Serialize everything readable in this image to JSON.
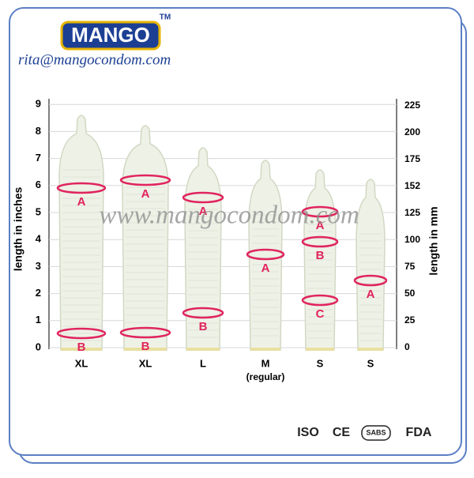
{
  "header": {
    "logo": "MANGO",
    "trademark": "TM",
    "email": "rita@mangocondom.com"
  },
  "diagram": {
    "left_axis_title": "length in inches",
    "right_axis_title": "length in mm",
    "left_ticks": [
      "0",
      "1",
      "2",
      "3",
      "4",
      "5",
      "6",
      "7",
      "8",
      "9"
    ],
    "right_ticks": [
      "0",
      "25",
      "50",
      "75",
      "100",
      "125",
      "152",
      "175",
      "200",
      "225"
    ],
    "watermark": "www.mangocondom.com",
    "items": [
      {
        "label": "XL",
        "markers": [
          "A",
          "B"
        ]
      },
      {
        "label": "XL",
        "markers": [
          "A",
          "B"
        ]
      },
      {
        "label": "L",
        "markers": [
          "A",
          "B"
        ]
      },
      {
        "label": "M",
        "note": "(regular)",
        "markers": [
          "A"
        ]
      },
      {
        "label": "S",
        "markers": [
          "A",
          "B",
          "C"
        ]
      },
      {
        "label": "S",
        "markers": [
          "A"
        ]
      }
    ]
  },
  "certifications": [
    "ISO",
    "CE",
    "SABS",
    "FDA"
  ]
}
